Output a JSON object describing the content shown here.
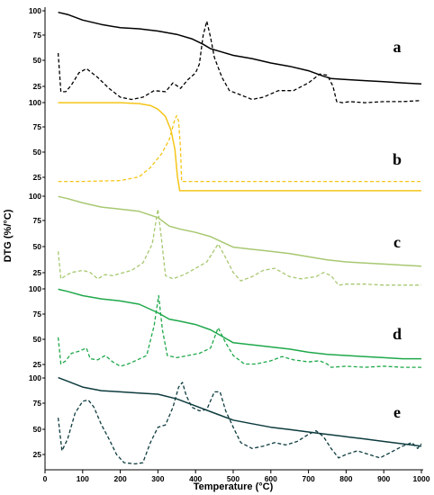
{
  "chart_data": {
    "type": "line",
    "xlabel": "Temperature (°C)",
    "ylabel": "DTG (%/°C)",
    "xlim": [
      0,
      1000
    ],
    "x_ticks": [
      0,
      100,
      200,
      300,
      400,
      500,
      600,
      700,
      800,
      900,
      1000
    ],
    "panels": [
      {
        "label": "a",
        "color": "#000000",
        "y_ticks": [
          100,
          75,
          50,
          25
        ],
        "ylim": [
          22,
          102
        ],
        "solid": [
          [
            35,
            99
          ],
          [
            60,
            97
          ],
          [
            100,
            92
          ],
          [
            150,
            88
          ],
          [
            200,
            85
          ],
          [
            250,
            84
          ],
          [
            300,
            82
          ],
          [
            350,
            79
          ],
          [
            390,
            75
          ],
          [
            420,
            70
          ],
          [
            440,
            66
          ],
          [
            470,
            63
          ],
          [
            500,
            60
          ],
          [
            550,
            57
          ],
          [
            600,
            53
          ],
          [
            650,
            50
          ],
          [
            700,
            46
          ],
          [
            740,
            41
          ],
          [
            760,
            39
          ],
          [
            800,
            38
          ],
          [
            850,
            37
          ],
          [
            900,
            36
          ],
          [
            950,
            35
          ],
          [
            1000,
            34
          ]
        ],
        "dashed": [
          [
            35,
            62
          ],
          [
            42,
            27
          ],
          [
            55,
            27
          ],
          [
            70,
            33
          ],
          [
            90,
            44
          ],
          [
            110,
            48
          ],
          [
            140,
            40
          ],
          [
            170,
            30
          ],
          [
            200,
            22
          ],
          [
            230,
            20
          ],
          [
            260,
            22
          ],
          [
            290,
            28
          ],
          [
            320,
            27
          ],
          [
            340,
            35
          ],
          [
            360,
            30
          ],
          [
            380,
            38
          ],
          [
            400,
            44
          ],
          [
            410,
            52
          ],
          [
            420,
            78
          ],
          [
            430,
            91
          ],
          [
            440,
            76
          ],
          [
            450,
            58
          ],
          [
            470,
            40
          ],
          [
            490,
            28
          ],
          [
            520,
            24
          ],
          [
            550,
            20
          ],
          [
            580,
            22
          ],
          [
            620,
            28
          ],
          [
            660,
            28
          ],
          [
            700,
            35
          ],
          [
            730,
            43
          ],
          [
            750,
            42
          ],
          [
            765,
            32
          ],
          [
            775,
            18
          ],
          [
            790,
            17
          ],
          [
            810,
            18
          ],
          [
            850,
            17
          ],
          [
            900,
            18
          ],
          [
            950,
            18
          ],
          [
            1000,
            19
          ]
        ]
      },
      {
        "label": "b",
        "color": "#f5c518",
        "y_ticks": [
          100,
          75,
          50,
          25
        ],
        "ylim": [
          2,
          102
        ],
        "solid": [
          [
            35,
            100
          ],
          [
            100,
            100
          ],
          [
            200,
            100
          ],
          [
            250,
            99
          ],
          [
            280,
            97
          ],
          [
            300,
            93
          ],
          [
            320,
            85
          ],
          [
            335,
            70
          ],
          [
            345,
            50
          ],
          [
            352,
            20
          ],
          [
            358,
            5
          ],
          [
            370,
            5
          ],
          [
            500,
            5
          ],
          [
            700,
            5
          ],
          [
            900,
            5
          ],
          [
            1000,
            5
          ]
        ],
        "dashed": [
          [
            35,
            15
          ],
          [
            100,
            15
          ],
          [
            200,
            16
          ],
          [
            250,
            20
          ],
          [
            280,
            30
          ],
          [
            310,
            45
          ],
          [
            330,
            60
          ],
          [
            345,
            82
          ],
          [
            350,
            86
          ],
          [
            355,
            80
          ],
          [
            360,
            50
          ],
          [
            363,
            15
          ],
          [
            370,
            15
          ],
          [
            500,
            15
          ],
          [
            700,
            15
          ],
          [
            900,
            15
          ],
          [
            1000,
            15
          ]
        ]
      },
      {
        "label": "c",
        "color": "#a8c871",
        "y_ticks": [
          100,
          75,
          50,
          25
        ],
        "ylim": [
          15,
          102
        ],
        "solid": [
          [
            35,
            100
          ],
          [
            60,
            98
          ],
          [
            100,
            94
          ],
          [
            150,
            90
          ],
          [
            200,
            88
          ],
          [
            250,
            86
          ],
          [
            300,
            80
          ],
          [
            330,
            72
          ],
          [
            360,
            69
          ],
          [
            400,
            66
          ],
          [
            440,
            62
          ],
          [
            470,
            57
          ],
          [
            500,
            52
          ],
          [
            550,
            50
          ],
          [
            600,
            48
          ],
          [
            650,
            46
          ],
          [
            700,
            43
          ],
          [
            750,
            40
          ],
          [
            800,
            38
          ],
          [
            850,
            37
          ],
          [
            900,
            36
          ],
          [
            950,
            35
          ],
          [
            1000,
            34
          ]
        ],
        "dashed": [
          [
            35,
            48
          ],
          [
            42,
            22
          ],
          [
            55,
            25
          ],
          [
            70,
            28
          ],
          [
            100,
            30
          ],
          [
            120,
            28
          ],
          [
            140,
            22
          ],
          [
            160,
            26
          ],
          [
            180,
            25
          ],
          [
            200,
            27
          ],
          [
            230,
            30
          ],
          [
            260,
            37
          ],
          [
            285,
            55
          ],
          [
            300,
            88
          ],
          [
            310,
            58
          ],
          [
            320,
            25
          ],
          [
            340,
            22
          ],
          [
            370,
            26
          ],
          [
            400,
            32
          ],
          [
            430,
            38
          ],
          [
            460,
            55
          ],
          [
            480,
            42
          ],
          [
            500,
            28
          ],
          [
            520,
            20
          ],
          [
            550,
            24
          ],
          [
            580,
            30
          ],
          [
            610,
            32
          ],
          [
            650,
            24
          ],
          [
            680,
            22
          ],
          [
            720,
            24
          ],
          [
            740,
            28
          ],
          [
            760,
            25
          ],
          [
            780,
            16
          ],
          [
            800,
            17
          ],
          [
            850,
            17
          ],
          [
            900,
            16
          ],
          [
            950,
            16
          ],
          [
            1000,
            16
          ]
        ]
      },
      {
        "label": "d",
        "color": "#1ea84a",
        "y_ticks": [
          100,
          75,
          50,
          25
        ],
        "ylim": [
          22,
          102
        ],
        "solid": [
          [
            35,
            100
          ],
          [
            60,
            98
          ],
          [
            100,
            94
          ],
          [
            150,
            91
          ],
          [
            200,
            89
          ],
          [
            250,
            86
          ],
          [
            300,
            78
          ],
          [
            330,
            72
          ],
          [
            360,
            70
          ],
          [
            400,
            67
          ],
          [
            440,
            62
          ],
          [
            470,
            56
          ],
          [
            500,
            50
          ],
          [
            550,
            48
          ],
          [
            600,
            46
          ],
          [
            650,
            44
          ],
          [
            700,
            41
          ],
          [
            750,
            39
          ],
          [
            800,
            38
          ],
          [
            850,
            37
          ],
          [
            900,
            36
          ],
          [
            950,
            35
          ],
          [
            1000,
            35
          ]
        ],
        "dashed": [
          [
            35,
            55
          ],
          [
            42,
            30
          ],
          [
            55,
            33
          ],
          [
            70,
            40
          ],
          [
            90,
            42
          ],
          [
            110,
            45
          ],
          [
            120,
            35
          ],
          [
            140,
            34
          ],
          [
            160,
            38
          ],
          [
            180,
            32
          ],
          [
            200,
            28
          ],
          [
            220,
            30
          ],
          [
            240,
            33
          ],
          [
            270,
            38
          ],
          [
            290,
            66
          ],
          [
            302,
            94
          ],
          [
            312,
            62
          ],
          [
            325,
            38
          ],
          [
            350,
            36
          ],
          [
            380,
            38
          ],
          [
            410,
            40
          ],
          [
            440,
            45
          ],
          [
            460,
            64
          ],
          [
            480,
            50
          ],
          [
            500,
            38
          ],
          [
            530,
            30
          ],
          [
            560,
            30
          ],
          [
            600,
            33
          ],
          [
            630,
            37
          ],
          [
            660,
            34
          ],
          [
            700,
            32
          ],
          [
            730,
            33
          ],
          [
            750,
            30
          ],
          [
            760,
            27
          ],
          [
            800,
            28
          ],
          [
            850,
            27
          ],
          [
            900,
            28
          ],
          [
            950,
            27
          ],
          [
            1000,
            27
          ]
        ]
      },
      {
        "label": "e",
        "color": "#0d3b3e",
        "y_ticks": [
          100,
          75,
          50,
          25
        ],
        "ylim": [
          25,
          102
        ],
        "solid": [
          [
            35,
            100
          ],
          [
            60,
            97
          ],
          [
            100,
            92
          ],
          [
            150,
            89
          ],
          [
            200,
            88
          ],
          [
            250,
            87
          ],
          [
            300,
            86
          ],
          [
            350,
            82
          ],
          [
            400,
            76
          ],
          [
            450,
            70
          ],
          [
            500,
            64
          ],
          [
            550,
            61
          ],
          [
            600,
            58
          ],
          [
            650,
            56
          ],
          [
            700,
            54
          ],
          [
            750,
            52
          ],
          [
            800,
            50
          ],
          [
            850,
            48
          ],
          [
            900,
            46
          ],
          [
            950,
            44
          ],
          [
            1000,
            42
          ]
        ],
        "dashed": [
          [
            35,
            66
          ],
          [
            45,
            38
          ],
          [
            60,
            48
          ],
          [
            80,
            70
          ],
          [
            100,
            80
          ],
          [
            115,
            81
          ],
          [
            130,
            75
          ],
          [
            150,
            60
          ],
          [
            170,
            48
          ],
          [
            190,
            35
          ],
          [
            210,
            28
          ],
          [
            240,
            27
          ],
          [
            260,
            28
          ],
          [
            280,
            45
          ],
          [
            300,
            58
          ],
          [
            320,
            60
          ],
          [
            340,
            75
          ],
          [
            355,
            92
          ],
          [
            365,
            96
          ],
          [
            375,
            85
          ],
          [
            390,
            75
          ],
          [
            410,
            72
          ],
          [
            430,
            73
          ],
          [
            450,
            88
          ],
          [
            465,
            88
          ],
          [
            480,
            72
          ],
          [
            500,
            58
          ],
          [
            520,
            45
          ],
          [
            550,
            40
          ],
          [
            580,
            42
          ],
          [
            610,
            45
          ],
          [
            640,
            43
          ],
          [
            670,
            46
          ],
          [
            700,
            52
          ],
          [
            720,
            55
          ],
          [
            740,
            50
          ],
          [
            760,
            40
          ],
          [
            780,
            32
          ],
          [
            800,
            35
          ],
          [
            830,
            38
          ],
          [
            860,
            35
          ],
          [
            890,
            32
          ],
          [
            920,
            37
          ],
          [
            950,
            42
          ],
          [
            975,
            45
          ],
          [
            990,
            40
          ],
          [
            1000,
            44
          ]
        ]
      }
    ]
  }
}
